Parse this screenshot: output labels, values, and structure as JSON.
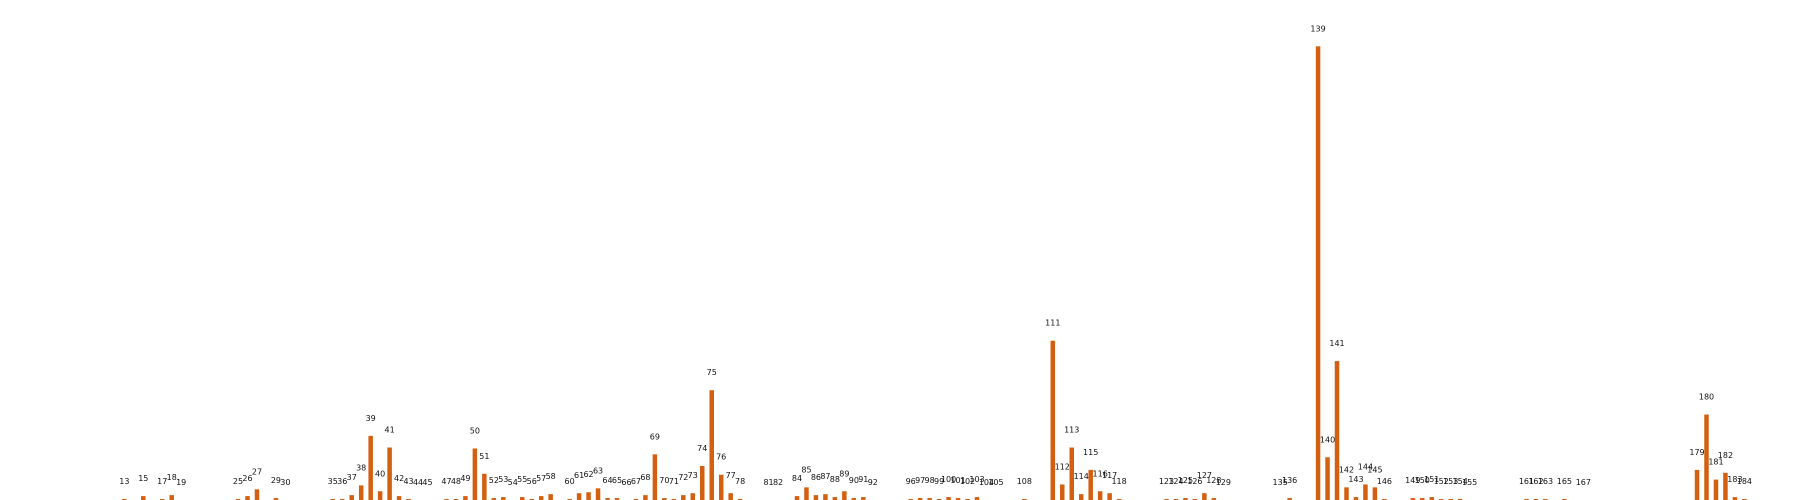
{
  "chart_data": {
    "type": "bar",
    "title": "",
    "xlabel": "",
    "ylabel": "",
    "ylim": [
      0,
      490
    ],
    "bar_color": "#d35f10",
    "grid": false,
    "legend": "none",
    "categories": [
      "13",
      "15",
      "17",
      "18",
      "19",
      "25",
      "26",
      "27",
      "29",
      "30",
      "35",
      "36",
      "37",
      "38",
      "39",
      "40",
      "41",
      "42",
      "43",
      "44",
      "45",
      "47",
      "48",
      "49",
      "50",
      "51",
      "52",
      "53",
      "54",
      "55",
      "56",
      "57",
      "58",
      "60",
      "61",
      "62",
      "63",
      "64",
      "65",
      "66",
      "67",
      "68",
      "69",
      "70",
      "71",
      "72",
      "73",
      "74",
      "75",
      "76",
      "77",
      "78",
      "81",
      "82",
      "84",
      "85",
      "86",
      "87",
      "88",
      "89",
      "90",
      "91",
      "92",
      "96",
      "97",
      "98",
      "99",
      "100",
      "101",
      "102",
      "103",
      "104",
      "105",
      "108",
      "111",
      "112",
      "113",
      "114",
      "115",
      "116",
      "117",
      "118",
      "123",
      "124",
      "125",
      "126",
      "127",
      "128",
      "129",
      "135",
      "136",
      "139",
      "140",
      "141",
      "142",
      "143",
      "144",
      "145",
      "146",
      "149",
      "150",
      "151",
      "152",
      "153",
      "154",
      "155",
      "161",
      "162",
      "163",
      "165",
      "167",
      "179",
      "180",
      "181",
      "182",
      "183",
      "184"
    ],
    "values": [
      1,
      4,
      1,
      5,
      0,
      1,
      4,
      11,
      2,
      0,
      1,
      1,
      5,
      15,
      66,
      9,
      54,
      4,
      1,
      0,
      0,
      1,
      1,
      4,
      53,
      27,
      2,
      3,
      0,
      3,
      1,
      4,
      6,
      1,
      7,
      8,
      12,
      2,
      2,
      0,
      1,
      5,
      47,
      2,
      1,
      5,
      7,
      35,
      113,
      26,
      7,
      1,
      0,
      0,
      4,
      13,
      5,
      6,
      3,
      9,
      2,
      3,
      0,
      1,
      2,
      2,
      1,
      3,
      2,
      1,
      3,
      0,
      0,
      1,
      164,
      16,
      54,
      6,
      31,
      9,
      7,
      1,
      1,
      1,
      2,
      1,
      7,
      2,
      0,
      0,
      2,
      467,
      44,
      143,
      13,
      3,
      16,
      13,
      1,
      2,
      2,
      3,
      1,
      1,
      1,
      0,
      1,
      1,
      1,
      1,
      0,
      31,
      88,
      21,
      28,
      3,
      1
    ]
  }
}
